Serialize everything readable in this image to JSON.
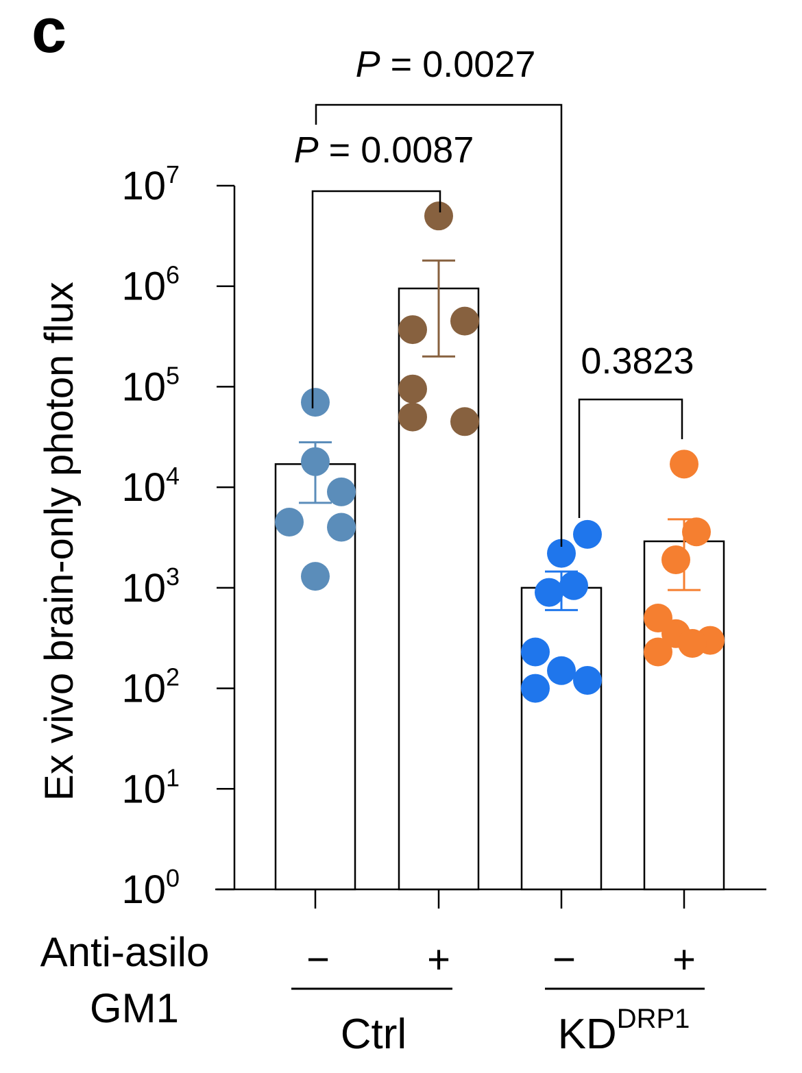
{
  "panel_label": "c",
  "chart_data": {
    "type": "bar",
    "yscale": "log",
    "ylim": [
      1,
      10000000
    ],
    "ylabel": "Ex vivo brain-only photon flux",
    "ytick_base": "10",
    "yticks": [
      {
        "value": 1,
        "exp": "0"
      },
      {
        "value": 10,
        "exp": "1"
      },
      {
        "value": 100,
        "exp": "2"
      },
      {
        "value": 1000,
        "exp": "3"
      },
      {
        "value": 10000,
        "exp": "4"
      },
      {
        "value": 100000,
        "exp": "5"
      },
      {
        "value": 1000000,
        "exp": "6"
      },
      {
        "value": 10000000,
        "exp": "7"
      }
    ],
    "row_label_line1": "Anti-asilo",
    "row_label_line2": "GM1",
    "groups": [
      {
        "label": "Ctrl",
        "label_sup": ""
      },
      {
        "label": "KD",
        "label_sup": "DRP1"
      }
    ],
    "bars": [
      {
        "treatment": "−",
        "group": 0,
        "mean": 17000,
        "err_low": 7000,
        "err_high": 28000,
        "color": "#5B8DBA",
        "points": [
          70000,
          18000,
          9000,
          4500,
          4000,
          1300
        ]
      },
      {
        "treatment": "+",
        "group": 0,
        "mean": 950000,
        "err_low": 200000,
        "err_high": 1800000,
        "color": "#87613F",
        "points": [
          5000000,
          450000,
          370000,
          95000,
          50000,
          45000
        ]
      },
      {
        "treatment": "−",
        "group": 1,
        "mean": 1000,
        "err_low": 600,
        "err_high": 1450,
        "color": "#1F76EC",
        "points": [
          3400,
          2200,
          1050,
          900,
          230,
          150,
          120,
          100
        ]
      },
      {
        "treatment": "+",
        "group": 1,
        "mean": 2900,
        "err_low": 950,
        "err_high": 4800,
        "color": "#F57F30",
        "points": [
          17000,
          3600,
          1900,
          500,
          350,
          300,
          280,
          230
        ]
      }
    ],
    "comparisons": [
      {
        "from": 0,
        "to": 1,
        "label_italic": "P",
        "label_rest": " = 0.0087"
      },
      {
        "from": 0,
        "to": 2,
        "label_italic": "P",
        "label_rest": " = 0.0027"
      },
      {
        "from": 2,
        "to": 3,
        "label_italic": "",
        "label_rest": "0.3823"
      }
    ]
  }
}
